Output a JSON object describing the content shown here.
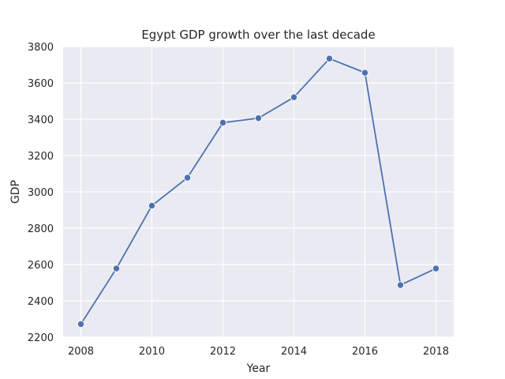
{
  "chart_data": {
    "type": "line",
    "title": "Egypt GDP growth over the last decade",
    "xlabel": "Year",
    "ylabel": "GDP",
    "x": [
      2008,
      2009,
      2010,
      2011,
      2012,
      2013,
      2014,
      2015,
      2016,
      2017,
      2018
    ],
    "series": [
      {
        "values": [
          2272,
          2578,
          2924,
          3078,
          3381,
          3406,
          3521,
          3734,
          3656,
          2487,
          2578
        ]
      }
    ],
    "xticks": [
      "2008",
      "2010",
      "2012",
      "2014",
      "2016",
      "2018"
    ],
    "yticks": [
      "2200",
      "2400",
      "2600",
      "2800",
      "3000",
      "3200",
      "3400",
      "3600",
      "3800"
    ],
    "xlim": [
      2007.5,
      2018.5
    ],
    "ylim": [
      2200,
      3800
    ],
    "grid": true,
    "marker": "circle",
    "colors": {
      "line": "#4c72b0",
      "background": "#eaeaf2",
      "grid": "#ffffff"
    }
  }
}
